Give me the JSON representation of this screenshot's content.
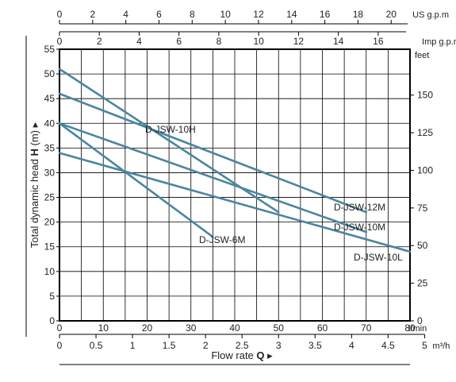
{
  "chart_data": {
    "type": "line",
    "title": "",
    "xlabel_main": "Q",
    "xlabel_prefix": "Flow rate",
    "ylabel_prefix": "Total dynamic head",
    "ylabel_main": "H",
    "ylabel_unit": "(m)",
    "arrow_glyph": "▸",
    "axes": {
      "lmin": {
        "unit": "l/min",
        "range": [
          0,
          80
        ],
        "ticks": [
          "0",
          "10",
          "20",
          "30",
          "40",
          "50",
          "60",
          "70",
          "80"
        ]
      },
      "m3h": {
        "unit": "m³/h",
        "ticks": [
          "0",
          "0.5",
          "1",
          "1.5",
          "2",
          "2.5",
          "3",
          "3.5",
          "4",
          "4.5",
          "5"
        ]
      },
      "us_gpm": {
        "unit": "US g.p.m",
        "ticks": [
          "0",
          "2",
          "4",
          "6",
          "8",
          "10",
          "12",
          "14",
          "16",
          "18",
          "20"
        ]
      },
      "imp_gpm": {
        "unit": "Imp g.p.m",
        "ticks": [
          "0",
          "2",
          "4",
          "6",
          "8",
          "10",
          "12",
          "14",
          "16"
        ]
      },
      "head_m": {
        "range": [
          0,
          55
        ],
        "ticks": [
          "0",
          "5",
          "10",
          "15",
          "20",
          "25",
          "30",
          "35",
          "40",
          "45",
          "50",
          "55"
        ]
      },
      "head_ft": {
        "unit": "feet",
        "ticks": [
          "0",
          "25",
          "50",
          "75",
          "100",
          "125",
          "150"
        ]
      }
    },
    "grid": true,
    "series": [
      {
        "name": "D-JSW-10H",
        "x": [
          0,
          50
        ],
        "y": [
          51,
          22
        ]
      },
      {
        "name": "D-JSW-12M",
        "x": [
          0,
          70
        ],
        "y": [
          46,
          22
        ]
      },
      {
        "name": "D-JSW-10M",
        "x": [
          0,
          70
        ],
        "y": [
          40,
          18
        ]
      },
      {
        "name": "D-JSW-10L",
        "x": [
          0,
          80
        ],
        "y": [
          34,
          14
        ]
      },
      {
        "name": "D-JSW-6M",
        "x": [
          0,
          35
        ],
        "y": [
          40,
          17
        ]
      }
    ]
  }
}
